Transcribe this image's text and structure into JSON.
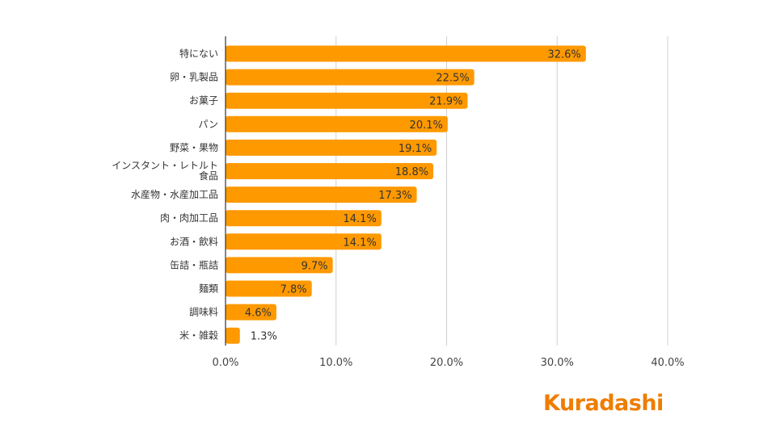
{
  "chart_data": {
    "type": "bar",
    "orientation": "horizontal",
    "categories": [
      "特にない",
      "卵・乳製品",
      "お菓子",
      "パン",
      "野菜・果物",
      "インスタント・レトルト食品",
      "水産物・水産加工品",
      "肉・肉加工品",
      "お酒・飲料",
      "缶詰・瓶詰",
      "麺類",
      "調味料",
      "米・雑穀"
    ],
    "category_lines": [
      [
        "特にない"
      ],
      [
        "卵・乳製品"
      ],
      [
        "お菓子"
      ],
      [
        "パン"
      ],
      [
        "野菜・果物"
      ],
      [
        "インスタント・レトルト",
        "食品"
      ],
      [
        "水産物・水産加工品"
      ],
      [
        "肉・肉加工品"
      ],
      [
        "お酒・飲料"
      ],
      [
        "缶詰・瓶詰"
      ],
      [
        "麺類"
      ],
      [
        "調味料"
      ],
      [
        "米・雑穀"
      ]
    ],
    "values": [
      32.6,
      22.5,
      21.9,
      20.1,
      19.1,
      18.8,
      17.3,
      14.1,
      14.1,
      9.7,
      7.8,
      4.6,
      1.3
    ],
    "value_labels": [
      "32.6%",
      "22.5%",
      "21.9%",
      "20.1%",
      "19.1%",
      "18.8%",
      "17.3%",
      "14.1%",
      "14.1%",
      "9.7%",
      "7.8%",
      "4.6%",
      "1.3%"
    ],
    "xlim": [
      0,
      40
    ],
    "x_ticks": [
      0,
      10,
      20,
      30,
      40
    ],
    "x_tick_labels": [
      "0.0%",
      "10.0%",
      "20.0%",
      "30.0%",
      "40.0%"
    ],
    "grid": true,
    "legend": "none",
    "title": "",
    "xlabel": "",
    "ylabel": "",
    "bar_color": "#ff9900",
    "outside_label_color": "#ff9900"
  },
  "brand": {
    "logo_text": "Kuradashi",
    "color": "#ef7d00"
  }
}
